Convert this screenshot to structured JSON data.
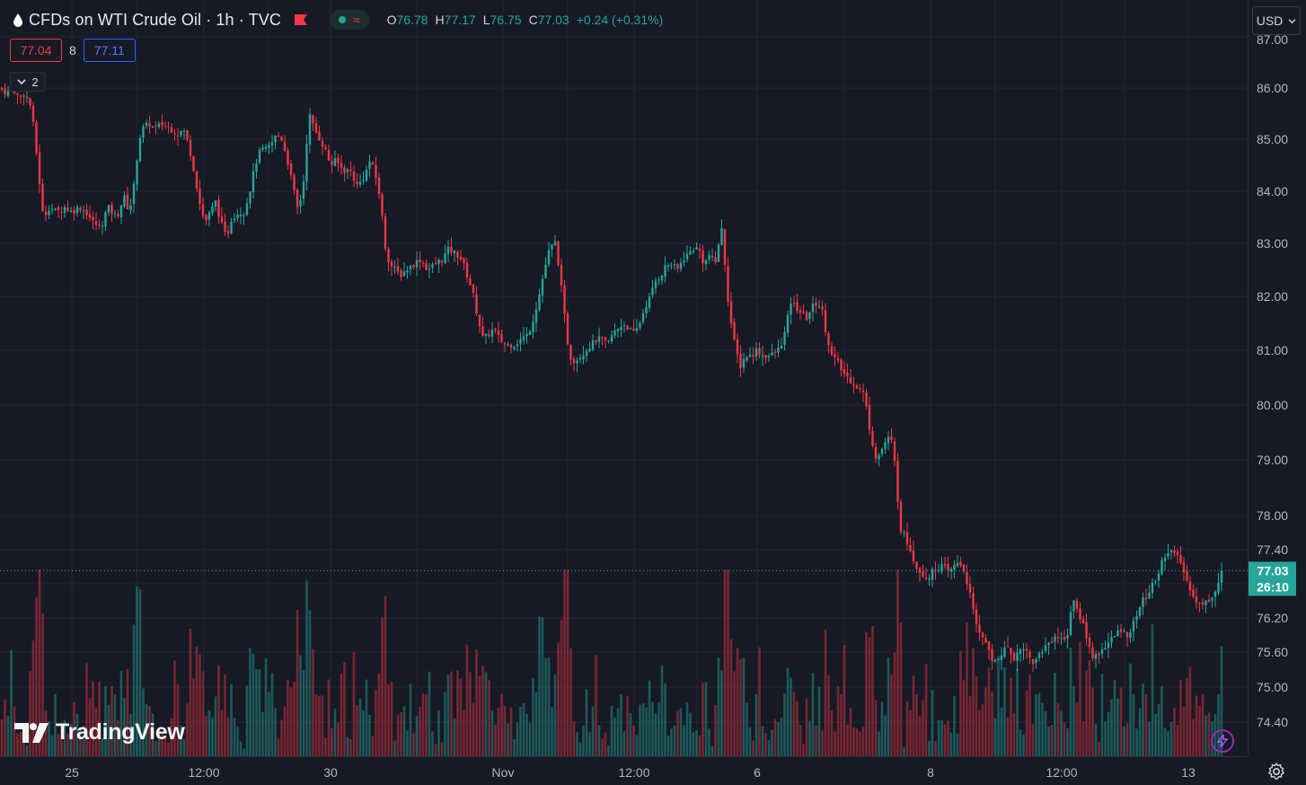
{
  "header": {
    "title": "CFDs on WTI Crude Oil · 1h · TVC",
    "ohlc": [
      {
        "k": "O",
        "v": "76.78"
      },
      {
        "k": "H",
        "v": "77.17"
      },
      {
        "k": "L",
        "v": "76.75"
      },
      {
        "k": "C",
        "v": "77.03"
      }
    ],
    "change": "+0.24 (+0.31%)"
  },
  "quote": {
    "sell": "77.04",
    "spread": "8",
    "buy": "77.11"
  },
  "indicators_collapse": {
    "count": "2"
  },
  "currency": "USD",
  "logo_text": "TradingView",
  "colors": {
    "up": "#26a69a",
    "down": "#f23645",
    "background": "#161a25",
    "grid": "#232632",
    "accent_buy": "#2962ff"
  },
  "chart_data": {
    "type": "candlestick",
    "symbol": "CFDs on WTI Crude Oil",
    "interval": "1h",
    "source": "TVC",
    "price_axis_ticks": [
      "87.00",
      "86.00",
      "85.00",
      "84.00",
      "83.00",
      "82.00",
      "81.00",
      "80.00",
      "79.00",
      "78.00",
      "77.40",
      "76.20",
      "75.60",
      "75.00",
      "74.40"
    ],
    "time_axis_ticks": [
      "25",
      "12:00",
      "30",
      "Nov",
      "12:00",
      "6",
      "8",
      "12:00",
      "13"
    ],
    "last_price": "77.03",
    "countdown": "26:10",
    "close_path": [
      [
        0,
        86.0
      ],
      [
        7,
        85.9
      ],
      [
        14,
        86.0
      ],
      [
        21,
        85.8
      ],
      [
        28,
        85.9
      ],
      [
        35,
        85.6
      ],
      [
        42,
        84.5
      ],
      [
        48,
        83.5
      ],
      [
        55,
        83.7
      ],
      [
        64,
        83.6
      ],
      [
        72,
        83.7
      ],
      [
        80,
        83.6
      ],
      [
        88,
        83.7
      ],
      [
        96,
        83.6
      ],
      [
        104,
        83.4
      ],
      [
        112,
        83.3
      ],
      [
        120,
        83.7
      ],
      [
        130,
        83.5
      ],
      [
        138,
        83.9
      ],
      [
        144,
        83.6
      ],
      [
        150,
        84.2
      ],
      [
        154,
        84.9
      ],
      [
        158,
        85.2
      ],
      [
        166,
        85.3
      ],
      [
        172,
        85.2
      ],
      [
        180,
        85.3
      ],
      [
        190,
        85.2
      ],
      [
        198,
        85.1
      ],
      [
        204,
        85.2
      ],
      [
        210,
        84.9
      ],
      [
        216,
        84.4
      ],
      [
        222,
        83.8
      ],
      [
        228,
        83.4
      ],
      [
        234,
        83.6
      ],
      [
        240,
        83.8
      ],
      [
        246,
        83.4
      ],
      [
        252,
        83.1
      ],
      [
        258,
        83.5
      ],
      [
        266,
        83.6
      ],
      [
        272,
        83.6
      ],
      [
        278,
        84.0
      ],
      [
        284,
        84.5
      ],
      [
        290,
        84.8
      ],
      [
        296,
        84.8
      ],
      [
        302,
        84.9
      ],
      [
        308,
        85.1
      ],
      [
        314,
        85.0
      ],
      [
        320,
        84.6
      ],
      [
        326,
        84.1
      ],
      [
        332,
        83.6
      ],
      [
        338,
        84.2
      ],
      [
        344,
        85.5
      ],
      [
        350,
        85.2
      ],
      [
        356,
        85.0
      ],
      [
        362,
        84.8
      ],
      [
        368,
        84.5
      ],
      [
        374,
        84.6
      ],
      [
        382,
        84.4
      ],
      [
        390,
        84.4
      ],
      [
        398,
        84.1
      ],
      [
        406,
        84.3
      ],
      [
        412,
        84.6
      ],
      [
        418,
        84.3
      ],
      [
        424,
        83.8
      ],
      [
        428,
        83.0
      ],
      [
        434,
        82.6
      ],
      [
        440,
        82.5
      ],
      [
        446,
        82.4
      ],
      [
        452,
        82.5
      ],
      [
        460,
        82.6
      ],
      [
        468,
        82.7
      ],
      [
        476,
        82.5
      ],
      [
        484,
        82.6
      ],
      [
        492,
        82.7
      ],
      [
        500,
        82.9
      ],
      [
        508,
        82.8
      ],
      [
        514,
        82.7
      ],
      [
        520,
        82.4
      ],
      [
        526,
        82.1
      ],
      [
        532,
        81.6
      ],
      [
        538,
        81.2
      ],
      [
        544,
        81.3
      ],
      [
        550,
        81.4
      ],
      [
        556,
        81.2
      ],
      [
        564,
        81.1
      ],
      [
        572,
        81.1
      ],
      [
        580,
        81.2
      ],
      [
        588,
        81.3
      ],
      [
        594,
        81.6
      ],
      [
        600,
        82.0
      ],
      [
        606,
        82.5
      ],
      [
        612,
        82.9
      ],
      [
        618,
        83.0
      ],
      [
        622,
        82.6
      ],
      [
        626,
        82.0
      ],
      [
        630,
        81.4
      ],
      [
        634,
        80.9
      ],
      [
        640,
        80.8
      ],
      [
        646,
        80.9
      ],
      [
        652,
        81.0
      ],
      [
        658,
        81.1
      ],
      [
        664,
        81.2
      ],
      [
        670,
        81.2
      ],
      [
        676,
        81.1
      ],
      [
        682,
        81.3
      ],
      [
        688,
        81.4
      ],
      [
        694,
        81.5
      ],
      [
        700,
        81.4
      ],
      [
        706,
        81.3
      ],
      [
        712,
        81.5
      ],
      [
        718,
        81.8
      ],
      [
        724,
        82.0
      ],
      [
        730,
        82.3
      ],
      [
        736,
        82.4
      ],
      [
        742,
        82.6
      ],
      [
        748,
        82.6
      ],
      [
        754,
        82.5
      ],
      [
        760,
        82.7
      ],
      [
        766,
        82.8
      ],
      [
        772,
        82.9
      ],
      [
        778,
        82.9
      ],
      [
        784,
        82.6
      ],
      [
        790,
        82.8
      ],
      [
        796,
        82.6
      ],
      [
        800,
        83.0
      ],
      [
        804,
        83.3
      ],
      [
        808,
        82.4
      ],
      [
        812,
        81.7
      ],
      [
        818,
        81.1
      ],
      [
        824,
        80.7
      ],
      [
        830,
        80.9
      ],
      [
        836,
        80.9
      ],
      [
        842,
        81.0
      ],
      [
        850,
        80.9
      ],
      [
        858,
        80.9
      ],
      [
        866,
        81.0
      ],
      [
        872,
        81.2
      ],
      [
        876,
        81.5
      ],
      [
        880,
        81.9
      ],
      [
        886,
        81.8
      ],
      [
        892,
        81.7
      ],
      [
        898,
        81.6
      ],
      [
        904,
        81.8
      ],
      [
        910,
        81.9
      ],
      [
        916,
        81.7
      ],
      [
        920,
        81.3
      ],
      [
        926,
        80.9
      ],
      [
        932,
        80.8
      ],
      [
        938,
        80.6
      ],
      [
        944,
        80.5
      ],
      [
        950,
        80.4
      ],
      [
        956,
        80.3
      ],
      [
        962,
        80.2
      ],
      [
        966,
        79.8
      ],
      [
        970,
        79.4
      ],
      [
        976,
        79.0
      ],
      [
        982,
        79.2
      ],
      [
        988,
        79.4
      ],
      [
        994,
        79.3
      ],
      [
        998,
        78.6
      ],
      [
        1002,
        77.8
      ],
      [
        1008,
        77.6
      ],
      [
        1014,
        77.4
      ],
      [
        1020,
        77.1
      ],
      [
        1026,
        77.0
      ],
      [
        1032,
        76.9
      ],
      [
        1038,
        77.0
      ],
      [
        1044,
        77.1
      ],
      [
        1050,
        77.1
      ],
      [
        1056,
        77.0
      ],
      [
        1062,
        77.1
      ],
      [
        1068,
        77.2
      ],
      [
        1074,
        77.0
      ],
      [
        1080,
        76.6
      ],
      [
        1086,
        76.1
      ],
      [
        1092,
        75.9
      ],
      [
        1098,
        75.8
      ],
      [
        1104,
        75.4
      ],
      [
        1110,
        75.5
      ],
      [
        1116,
        75.6
      ],
      [
        1122,
        75.7
      ],
      [
        1128,
        75.5
      ],
      [
        1134,
        75.6
      ],
      [
        1140,
        75.7
      ],
      [
        1146,
        75.5
      ],
      [
        1152,
        75.4
      ],
      [
        1158,
        75.6
      ],
      [
        1164,
        75.7
      ],
      [
        1170,
        75.8
      ],
      [
        1176,
        75.9
      ],
      [
        1182,
        75.8
      ],
      [
        1188,
        75.9
      ],
      [
        1194,
        76.5
      ],
      [
        1200,
        76.3
      ],
      [
        1206,
        76.1
      ],
      [
        1212,
        75.7
      ],
      [
        1218,
        75.5
      ],
      [
        1224,
        75.6
      ],
      [
        1230,
        75.7
      ],
      [
        1236,
        75.8
      ],
      [
        1242,
        75.9
      ],
      [
        1248,
        76.0
      ],
      [
        1254,
        75.9
      ],
      [
        1260,
        76.0
      ],
      [
        1266,
        76.3
      ],
      [
        1272,
        76.5
      ],
      [
        1278,
        76.6
      ],
      [
        1284,
        76.8
      ],
      [
        1290,
        77.0
      ],
      [
        1296,
        77.3
      ],
      [
        1302,
        77.4
      ],
      [
        1308,
        77.3
      ],
      [
        1314,
        77.2
      ],
      [
        1320,
        76.9
      ],
      [
        1326,
        76.7
      ],
      [
        1332,
        76.5
      ],
      [
        1338,
        76.4
      ],
      [
        1344,
        76.5
      ],
      [
        1350,
        76.6
      ],
      [
        1356,
        76.8
      ],
      [
        1362,
        77.03
      ]
    ],
    "volume": "per-bar volume histogram along bottom, colored by candle direction"
  }
}
